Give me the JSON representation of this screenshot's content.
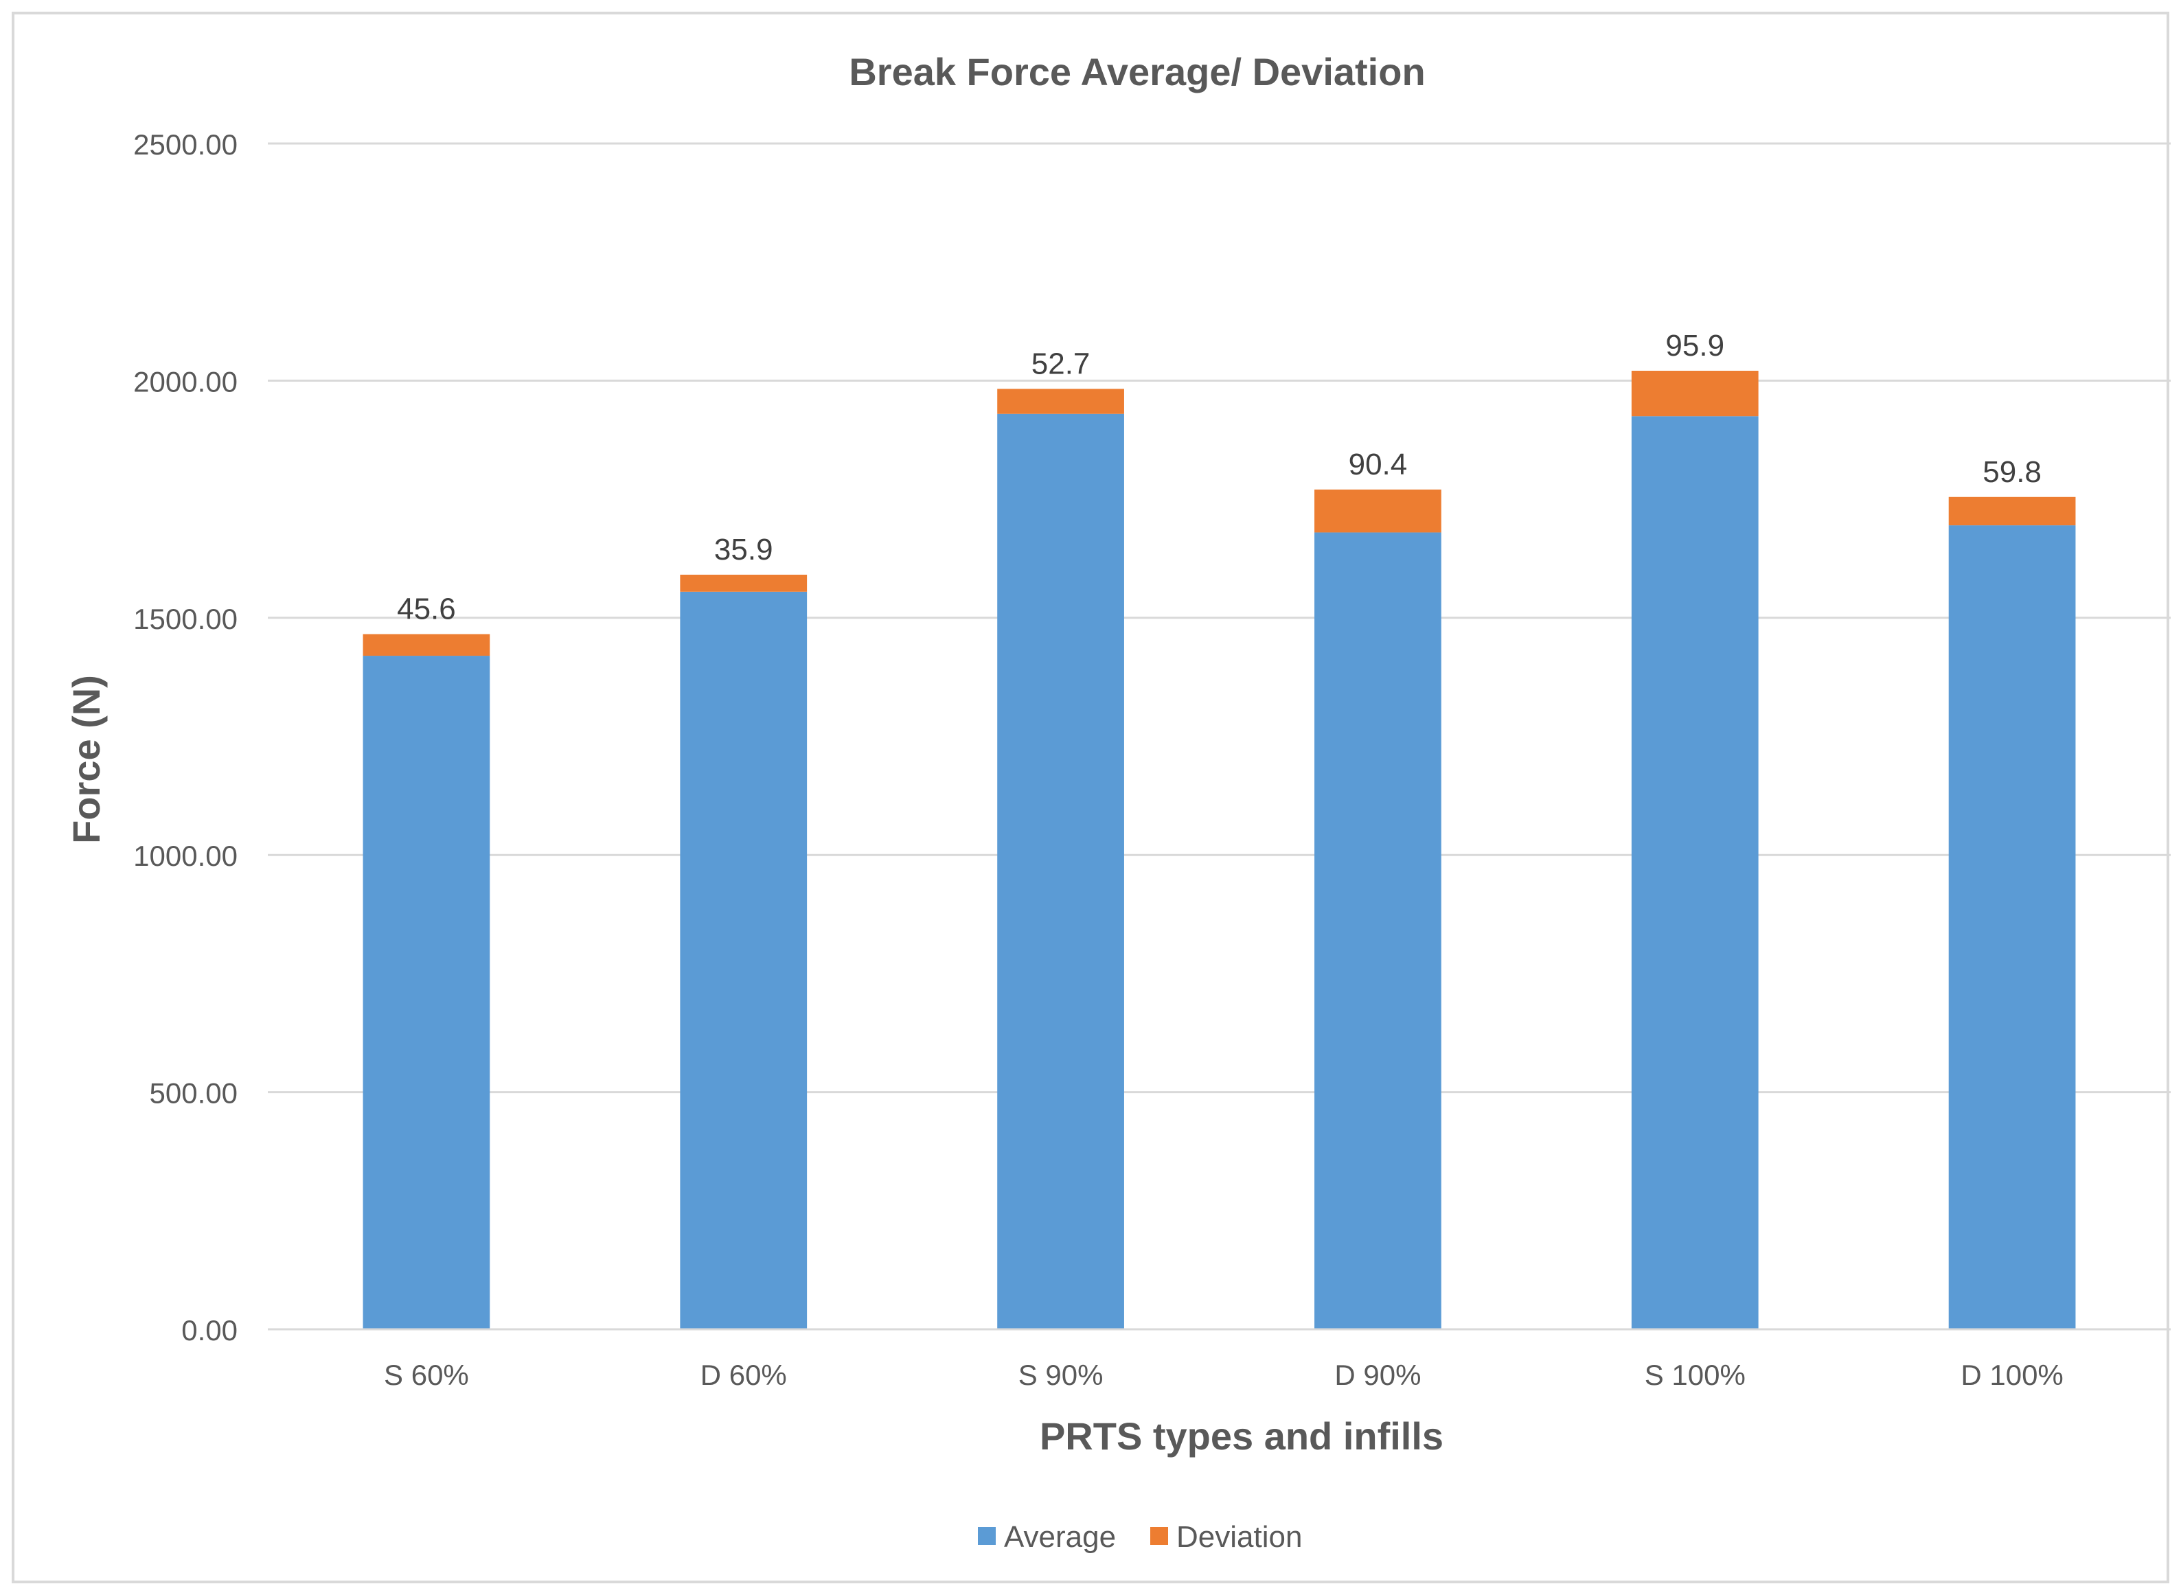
{
  "chart_data": {
    "type": "bar",
    "stacked": true,
    "title": "Break Force Average/ Deviation",
    "xlabel": "PRTS types and infills",
    "ylabel": "Force (N)",
    "ylim": [
      0,
      2500
    ],
    "yticks": [
      0,
      500,
      1000,
      1500,
      2000,
      2500
    ],
    "ytick_labels": [
      "0.00",
      "500.00",
      "1000.00",
      "1500.00",
      "2000.00",
      "2500.00"
    ],
    "grid": true,
    "legend_position": "bottom",
    "categories": [
      "S 60%",
      "D 60%",
      "S 90%",
      "D 90%",
      "S 100%",
      "D 100%"
    ],
    "series": [
      {
        "name": "Average",
        "color": "#5B9BD5",
        "values": [
          1420,
          1555,
          1930,
          1680,
          1925,
          1695
        ]
      },
      {
        "name": "Deviation",
        "color": "#ED7D31",
        "values": [
          45.6,
          35.9,
          52.7,
          90.4,
          95.9,
          59.8
        ]
      }
    ],
    "data_labels": [
      "45.6",
      "35.9",
      "52.7",
      "90.4",
      "95.9",
      "59.8"
    ]
  }
}
